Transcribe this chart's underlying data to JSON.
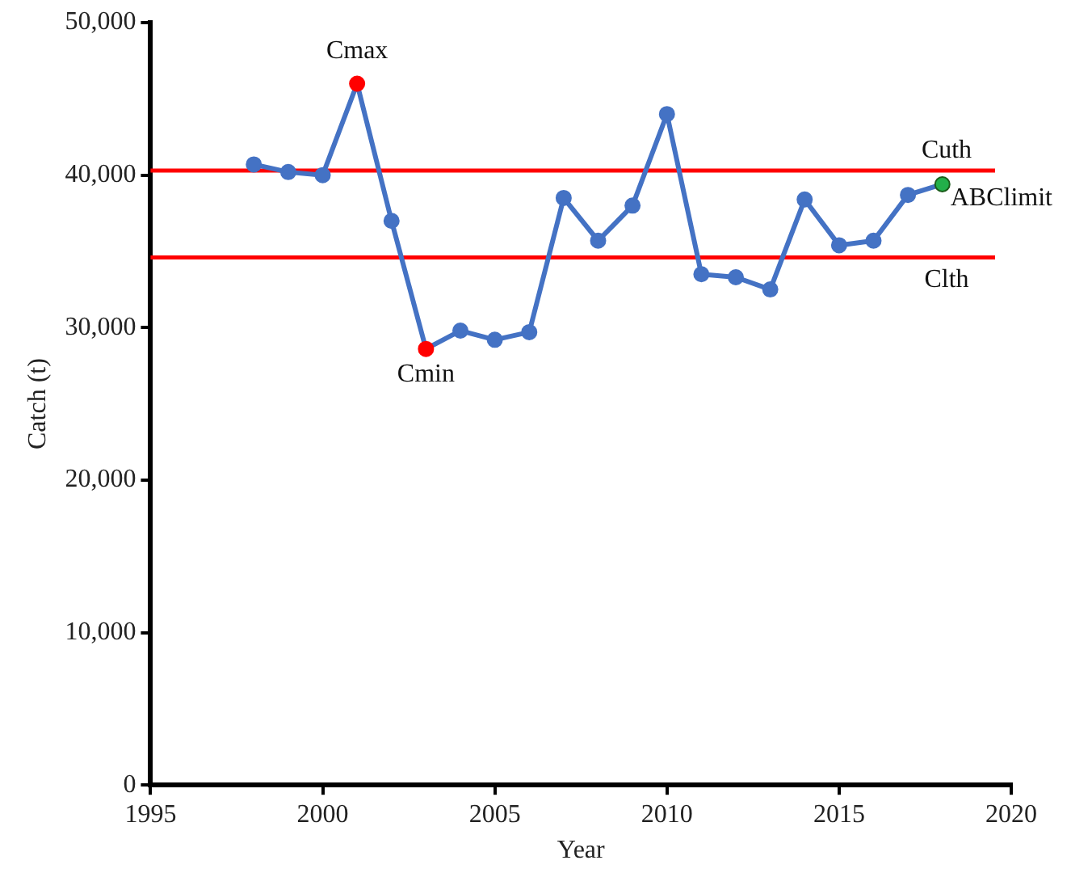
{
  "chart_data": {
    "type": "line",
    "xlabel": "Year",
    "ylabel": "Catch (t)",
    "x": [
      1998,
      1999,
      2000,
      2001,
      2002,
      2003,
      2004,
      2005,
      2006,
      2007,
      2008,
      2009,
      2010,
      2011,
      2012,
      2013,
      2014,
      2015,
      2016,
      2017,
      2018
    ],
    "series": [
      {
        "color": "#4472c4",
        "values": [
          40700,
          40200,
          40000,
          46000,
          37000,
          28600,
          29800,
          29200,
          29700,
          38500,
          35700,
          38000,
          44000,
          33500,
          33300,
          32500,
          38400,
          35400,
          35700,
          38700,
          39400
        ],
        "colors": [
          "#4472c4",
          "#4472c4",
          "#4472c4",
          "#ff0000",
          "#4472c4",
          "#ff0000",
          "#4472c4",
          "#4472c4",
          "#4472c4",
          "#4472c4",
          "#4472c4",
          "#4472c4",
          "#4472c4",
          "#4472c4",
          "#4472c4",
          "#4472c4",
          "#4472c4",
          "#4472c4",
          "#4472c4",
          "#4472c4",
          "#22b04a"
        ]
      }
    ],
    "xlim": [
      1995,
      2020
    ],
    "xticks": [
      1995,
      2000,
      2005,
      2010,
      2015,
      2020
    ],
    "ylim": [
      0,
      50000
    ],
    "yticks": [
      {
        "value": 0,
        "label": "0"
      },
      {
        "value": 10000,
        "label": "10,000"
      },
      {
        "value": 20000,
        "label": "20,000"
      },
      {
        "value": 30000,
        "label": "30,000"
      },
      {
        "value": 40000,
        "label": "40,000"
      },
      {
        "value": 50000,
        "label": "50,000"
      }
    ],
    "ref_lines": [
      {
        "axis": "y",
        "value": 40300,
        "label": "Cuth",
        "color": "#ff0000"
      },
      {
        "axis": "y",
        "value": 34600,
        "label": "Clth",
        "color": "#ff0000"
      }
    ],
    "annotations": [
      {
        "text": "Cmax",
        "x": 2001,
        "y": 46000
      },
      {
        "text": "Cmin",
        "x": 2003,
        "y": 28600
      },
      {
        "text": "ABClimit",
        "x": 2018,
        "y": 39400
      }
    ],
    "marker": "circle",
    "line_style": "solid",
    "grid": false,
    "legend": false
  }
}
